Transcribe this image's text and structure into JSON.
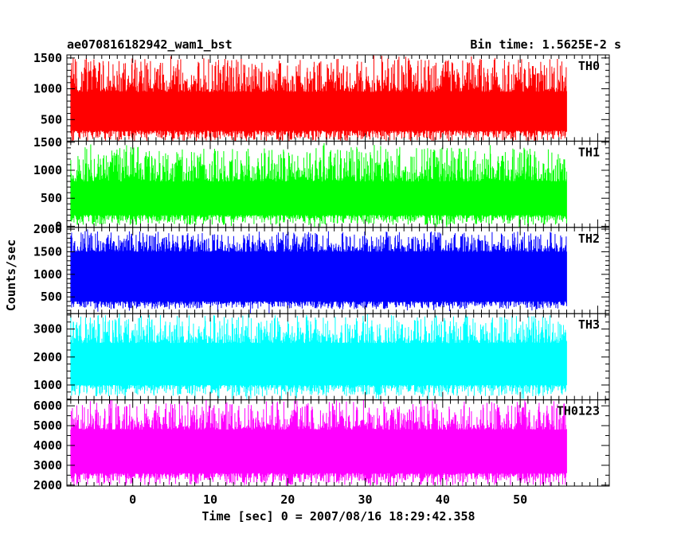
{
  "header": {
    "left": "ae070816182942_wam1_bst",
    "right": "Bin time: 1.5625E-2 s"
  },
  "chart_data": {
    "type": "line",
    "title": "ae070816182942_wam1_bst",
    "subtitle": "Bin time: 1.5625E-2 s",
    "xlabel": "Time [sec] 0 = 2007/08/16 18:29:42.358",
    "ylabel": "Counts/sec",
    "xlim": [
      -8.5,
      61.5
    ],
    "x_data_range": [
      -8,
      56
    ],
    "xticks": [
      0,
      10,
      20,
      30,
      40,
      50
    ],
    "bin_time_s": 0.015625,
    "grid": false,
    "panels": [
      {
        "name": "TH0",
        "color": "#ff0000",
        "ylim": [
          150,
          1550
        ],
        "yticks": [
          500,
          1000,
          1500
        ],
        "level_min": 150,
        "level_max": 1500,
        "typical_low": 320,
        "typical_high": 950,
        "spike_top": 1550
      },
      {
        "name": "TH1",
        "color": "#00ff00",
        "ylim": [
          -20,
          1520
        ],
        "yticks": [
          0,
          500,
          1000,
          1500
        ],
        "level_min": 20,
        "level_max": 1420,
        "typical_low": 200,
        "typical_high": 800,
        "spike_top": 1500
      },
      {
        "name": "TH2",
        "color": "#0000ff",
        "ylim": [
          130,
          2040
        ],
        "yticks": [
          500,
          1000,
          1500,
          2000
        ],
        "level_min": 230,
        "level_max": 1950,
        "typical_low": 400,
        "typical_high": 1500,
        "spike_top": 2000
      },
      {
        "name": "TH3",
        "color": "#00ffff",
        "ylim": [
          470,
          3550
        ],
        "yticks": [
          1000,
          2000,
          3000
        ],
        "level_min": 600,
        "level_max": 3500,
        "typical_low": 1000,
        "typical_high": 2500,
        "spike_top": 3550
      },
      {
        "name": "TH0123",
        "color": "#ff00ff",
        "ylim": [
          1950,
          6300
        ],
        "yticks": [
          2000,
          3000,
          4000,
          5000,
          6000
        ],
        "level_min": 2000,
        "level_max": 6300,
        "typical_low": 2600,
        "typical_high": 4800,
        "spike_top": 6300
      }
    ]
  }
}
